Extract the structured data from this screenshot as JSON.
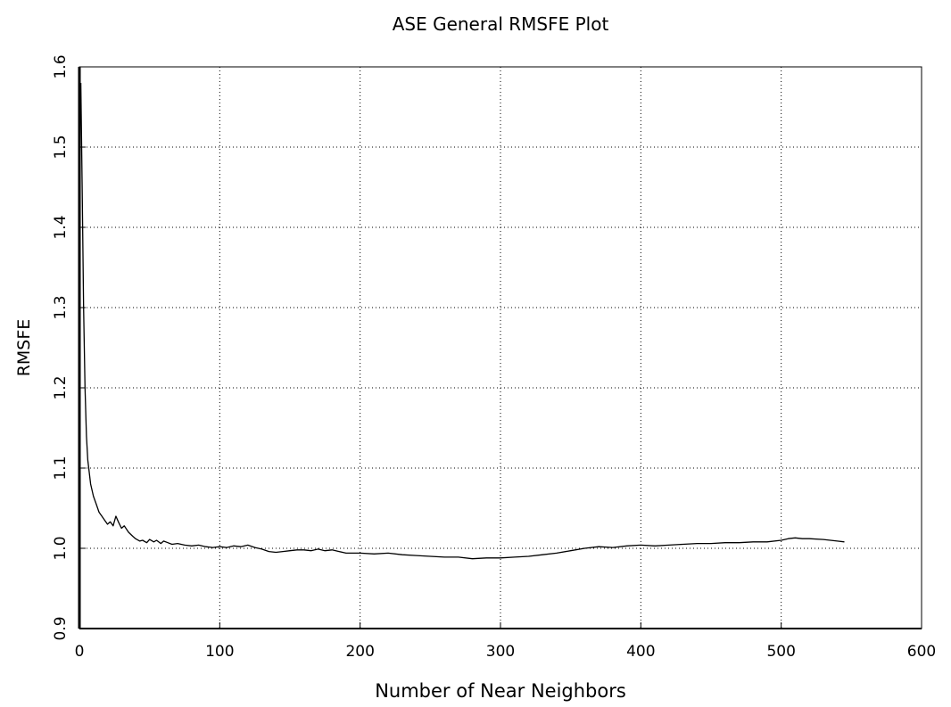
{
  "chart_data": {
    "type": "line",
    "title": "ASE General  RMSFE Plot",
    "xlabel": "Number of Near Neighbors",
    "ylabel": "RMSFE",
    "xlim": [
      0,
      600
    ],
    "ylim": [
      0.9,
      1.6
    ],
    "xticks": [
      0,
      100,
      200,
      300,
      400,
      500,
      600
    ],
    "yticks": [
      0.9,
      1.0,
      1.1,
      1.2,
      1.3,
      1.4,
      1.5,
      1.6
    ],
    "xtick_labels": [
      "0",
      "100",
      "200",
      "300",
      "400",
      "500",
      "600"
    ],
    "ytick_labels": [
      "0.9",
      "1.0",
      "1.1",
      "1.2",
      "1.3",
      "1.4",
      "1.5",
      "1.6"
    ],
    "grid": true,
    "line_color": "#000000",
    "series": [
      {
        "x": [
          1,
          2,
          3,
          4,
          5,
          6,
          8,
          10,
          12,
          14,
          16,
          18,
          20,
          22,
          24,
          26,
          28,
          30,
          32,
          35,
          38,
          40,
          43,
          45,
          48,
          50,
          53,
          55,
          58,
          60,
          63,
          66,
          70,
          75,
          80,
          85,
          90,
          95,
          100,
          105,
          110,
          115,
          120,
          125,
          130,
          135,
          140,
          145,
          150,
          155,
          160,
          165,
          170,
          175,
          180,
          185,
          190,
          200,
          210,
          220,
          230,
          240,
          250,
          260,
          270,
          280,
          290,
          300,
          310,
          320,
          330,
          340,
          350,
          360,
          370,
          380,
          390,
          400,
          410,
          420,
          430,
          440,
          450,
          460,
          470,
          480,
          490,
          500,
          505,
          510,
          515,
          520,
          530,
          540,
          545
        ],
        "y": [
          1.58,
          1.45,
          1.3,
          1.2,
          1.14,
          1.11,
          1.08,
          1.065,
          1.055,
          1.045,
          1.04,
          1.035,
          1.03,
          1.033,
          1.028,
          1.04,
          1.032,
          1.025,
          1.028,
          1.02,
          1.015,
          1.012,
          1.009,
          1.01,
          1.007,
          1.011,
          1.008,
          1.01,
          1.006,
          1.009,
          1.007,
          1.005,
          1.006,
          1.004,
          1.003,
          1.004,
          1.002,
          1.001,
          1.002,
          1.001,
          1.003,
          1.002,
          1.004,
          1.001,
          0.999,
          0.996,
          0.995,
          0.996,
          0.997,
          0.998,
          0.998,
          0.997,
          0.999,
          0.997,
          0.998,
          0.996,
          0.994,
          0.994,
          0.993,
          0.994,
          0.992,
          0.991,
          0.99,
          0.989,
          0.989,
          0.987,
          0.988,
          0.988,
          0.989,
          0.99,
          0.992,
          0.994,
          0.997,
          1.0,
          1.002,
          1.001,
          1.003,
          1.004,
          1.003,
          1.004,
          1.005,
          1.006,
          1.006,
          1.007,
          1.007,
          1.008,
          1.008,
          1.01,
          1.012,
          1.013,
          1.012,
          1.012,
          1.011,
          1.009,
          1.008
        ]
      }
    ]
  }
}
